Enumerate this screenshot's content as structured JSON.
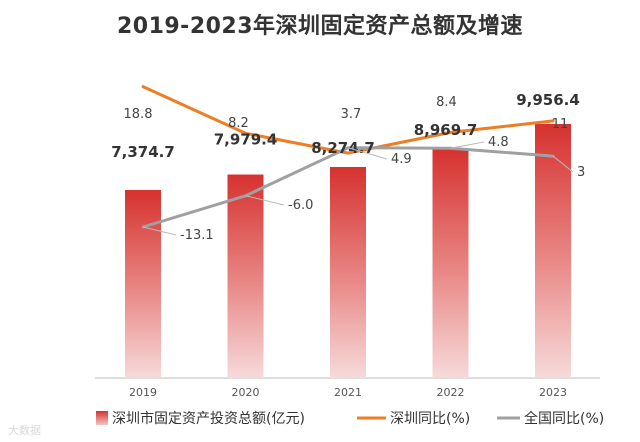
{
  "chart_data": {
    "type": "bar",
    "title": "2019-2023年深圳固定资产总额及增速",
    "categories": [
      "2019",
      "2020",
      "2021",
      "2022",
      "2023"
    ],
    "bar_series": {
      "name": "深圳市固定资产投资总额(亿元)",
      "values": [
        7374.7,
        7979.4,
        8274.7,
        8969.7,
        9956.4
      ],
      "labels": [
        "7,374.7",
        "7,979.4",
        "8,274.7",
        "8,969.7",
        "9,956.4"
      ],
      "color": "#c8262b"
    },
    "line_series": [
      {
        "name": "深圳同比(%)",
        "values": [
          18.8,
          8.2,
          3.7,
          8.4,
          11
        ],
        "labels": [
          "18.8",
          "8.2",
          "3.7",
          "8.4",
          "11"
        ],
        "color": "#ee7d24"
      },
      {
        "name": "全国同比(%)",
        "values": [
          -13.1,
          -6.0,
          4.9,
          4.8,
          3
        ],
        "labels": [
          "-13.1",
          "-6.0",
          "4.9",
          "4.8",
          "3"
        ],
        "color": "#a0a0a0"
      }
    ],
    "xlabel": "",
    "ylabel": "",
    "grid": false,
    "legend": "bottom"
  },
  "watermark": "大数据"
}
